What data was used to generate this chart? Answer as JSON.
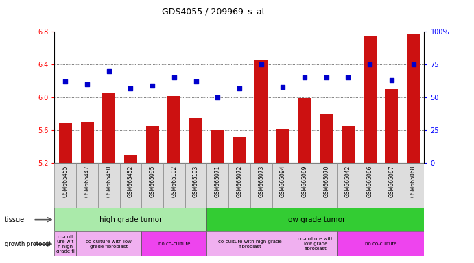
{
  "title": "GDS4055 / 209969_s_at",
  "samples": [
    "GSM665455",
    "GSM665447",
    "GSM665450",
    "GSM665452",
    "GSM665095",
    "GSM665102",
    "GSM665103",
    "GSM665071",
    "GSM665072",
    "GSM665073",
    "GSM665094",
    "GSM665069",
    "GSM665070",
    "GSM665042",
    "GSM665066",
    "GSM665067",
    "GSM665068"
  ],
  "bar_values": [
    5.68,
    5.7,
    6.05,
    5.3,
    5.65,
    6.02,
    5.75,
    5.6,
    5.52,
    6.46,
    5.62,
    5.99,
    5.8,
    5.65,
    6.75,
    6.1,
    6.77
  ],
  "dot_percentile": [
    62,
    60,
    70,
    57,
    59,
    65,
    62,
    50,
    57,
    75,
    58,
    65,
    65,
    65,
    75,
    63,
    75
  ],
  "ylim": [
    5.2,
    6.8
  ],
  "y2lim": [
    0,
    100
  ],
  "yticks": [
    5.2,
    5.6,
    6.0,
    6.4,
    6.8
  ],
  "y2ticks": [
    0,
    25,
    50,
    75,
    100
  ],
  "bar_color": "#cc1111",
  "dot_color": "#0000cc",
  "tissue_high": {
    "label": "high grade tumor",
    "color": "#aaeaaa",
    "start": 0,
    "end": 7
  },
  "tissue_low": {
    "label": "low grade tumor",
    "color": "#33cc33",
    "start": 7,
    "end": 17
  },
  "growth_groups": [
    {
      "label": "co-cult\nure wit\nh high\ngrade fi",
      "color": "#f0b0f0",
      "start": 0,
      "end": 1
    },
    {
      "label": "co-culture with low\ngrade fibroblast",
      "color": "#f0b0f0",
      "start": 1,
      "end": 4
    },
    {
      "label": "no co-culture",
      "color": "#ee44ee",
      "start": 4,
      "end": 7
    },
    {
      "label": "co-culture with high grade\nfibroblast",
      "color": "#f0b0f0",
      "start": 7,
      "end": 11
    },
    {
      "label": "co-culture with\nlow grade\nfibroblast",
      "color": "#f0b0f0",
      "start": 11,
      "end": 13
    },
    {
      "label": "no co-culture",
      "color": "#ee44ee",
      "start": 13,
      "end": 17
    }
  ]
}
